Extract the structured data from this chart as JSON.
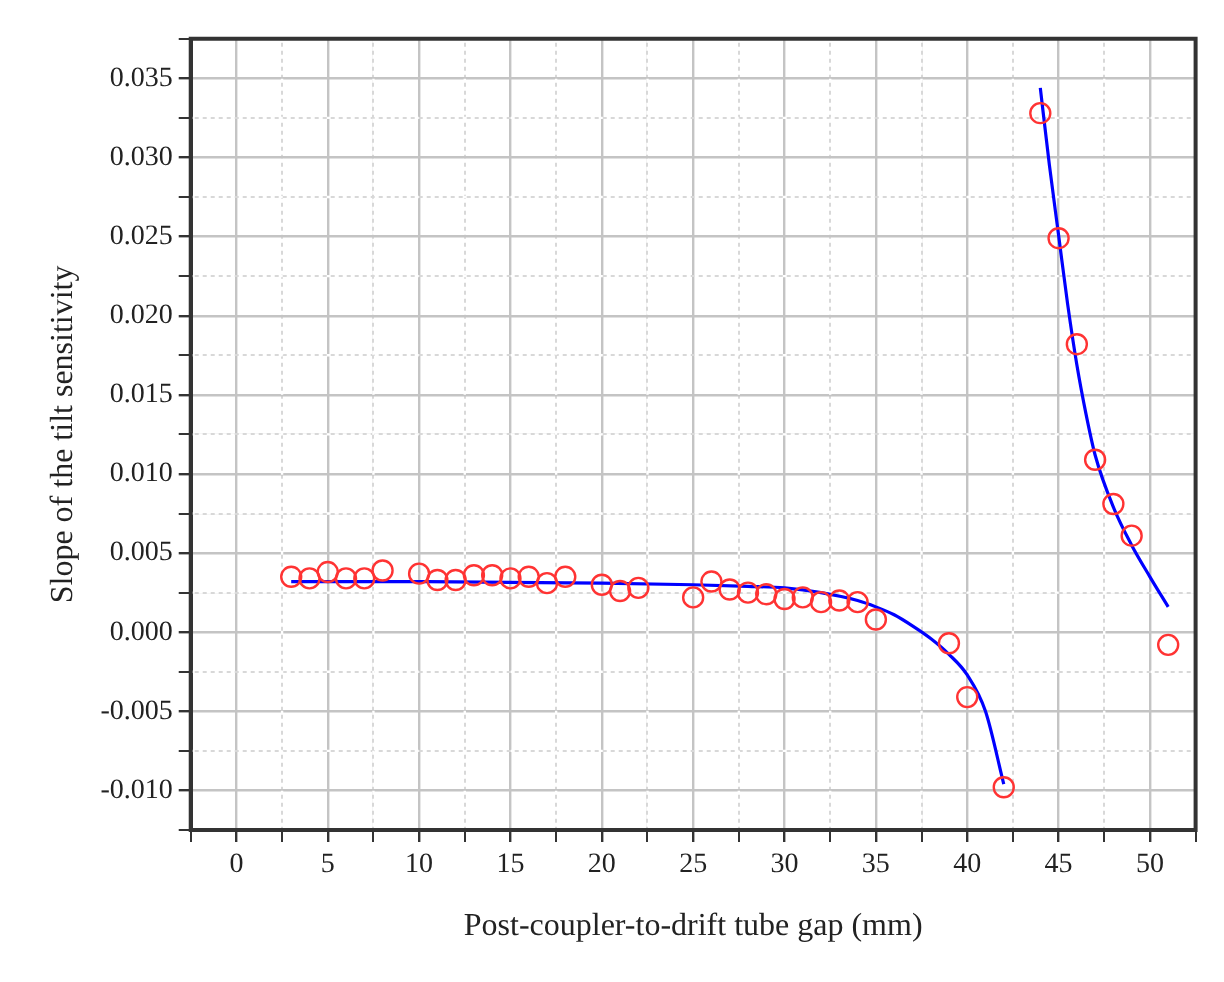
{
  "chart_data": {
    "type": "scatter",
    "xlabel": "Post-coupler-to-drift tube gap (mm)",
    "ylabel": "Slope of the tilt sensitivity",
    "xlim": [
      -2.5,
      52.5
    ],
    "ylim": [
      -0.0125,
      0.0375
    ],
    "xticks": [
      {
        "value": -2.5,
        "label": null
      },
      0,
      {
        "value": 2.5,
        "label": null
      },
      5,
      {
        "value": 7.5,
        "label": null
      },
      10,
      {
        "value": 12.5,
        "label": null
      },
      15,
      {
        "value": 17.5,
        "label": null
      },
      20,
      {
        "value": 22.5,
        "label": null
      },
      25,
      {
        "value": 27.5,
        "label": null
      },
      30,
      {
        "value": 32.5,
        "label": null
      },
      35,
      {
        "value": 37.5,
        "label": null
      },
      40,
      {
        "value": 42.5,
        "label": null
      },
      45,
      {
        "value": 47.5,
        "label": null
      },
      50,
      {
        "value": 52.5,
        "label": null
      }
    ],
    "yticks": [
      {
        "value": -0.0125,
        "label": null
      },
      {
        "value": -0.01,
        "label": "-0.010"
      },
      {
        "value": -0.0075,
        "label": null
      },
      -0.005,
      {
        "value": -0.0025,
        "label": null
      },
      {
        "value": 0,
        "label": "0.000"
      },
      {
        "value": 0.0025,
        "label": null
      },
      0.005,
      {
        "value": 0.0075,
        "label": null
      },
      {
        "value": 0.01,
        "label": "0.010"
      },
      {
        "value": 0.0125,
        "label": null
      },
      0.015,
      {
        "value": 0.0175,
        "label": null
      },
      {
        "value": 0.02,
        "label": "0.020"
      },
      {
        "value": 0.0225,
        "label": null
      },
      0.025,
      {
        "value": 0.0275,
        "label": null
      },
      {
        "value": 0.03,
        "label": "0.030"
      },
      {
        "value": 0.0325,
        "label": null
      },
      0.035,
      {
        "value": 0.0375,
        "label": null
      }
    ],
    "grid": true,
    "legend": false,
    "marker": "circle",
    "series": [
      {
        "color": "#ff3333",
        "x": [
          3,
          4,
          5,
          6,
          7,
          8,
          10,
          11,
          12,
          13,
          14,
          15,
          16,
          17,
          18,
          20,
          21,
          22,
          25,
          26,
          27,
          28,
          29,
          30,
          31,
          32,
          33,
          34,
          35,
          39,
          40,
          42,
          44,
          45,
          46,
          47,
          48,
          49,
          51
        ],
        "values": [
          0.0035,
          0.0034,
          0.0038,
          0.0034,
          0.0034,
          0.0039,
          0.0037,
          0.0033,
          0.0033,
          0.0036,
          0.0036,
          0.0034,
          0.0035,
          0.0031,
          0.0035,
          0.003,
          0.0026,
          0.0028,
          0.0022,
          0.0032,
          0.0027,
          0.0025,
          0.0024,
          0.0021,
          0.0022,
          0.0019,
          0.002,
          0.0019,
          0.0008,
          -0.0007,
          -0.0041,
          -0.0098,
          0.0328,
          0.0249,
          0.0182,
          0.0109,
          0.0081,
          0.0061,
          -0.0008
        ]
      },
      {
        "type": "line",
        "color": "#0000ff",
        "marker": "none",
        "line_style": "solid",
        "x": [
          3,
          10,
          20,
          25,
          28,
          30,
          32,
          34,
          35,
          36,
          37,
          38,
          39,
          40,
          41,
          42
        ],
        "values": [
          0.0032,
          0.0032,
          0.0031,
          0.003,
          0.0029,
          0.0028,
          0.0025,
          0.002,
          0.0016,
          0.0011,
          0.0004,
          -0.0004,
          -0.0014,
          -0.0027,
          -0.005,
          -0.0096
        ]
      },
      {
        "type": "line",
        "color": "#0000ff",
        "marker": "none",
        "line_style": "solid",
        "x": [
          44,
          44.5,
          45,
          45.5,
          46,
          46.5,
          47,
          48,
          49,
          50,
          51
        ],
        "values": [
          0.0344,
          0.0295,
          0.0251,
          0.0207,
          0.0169,
          0.0138,
          0.0112,
          0.0079,
          0.0055,
          0.0035,
          0.0016
        ]
      }
    ]
  }
}
